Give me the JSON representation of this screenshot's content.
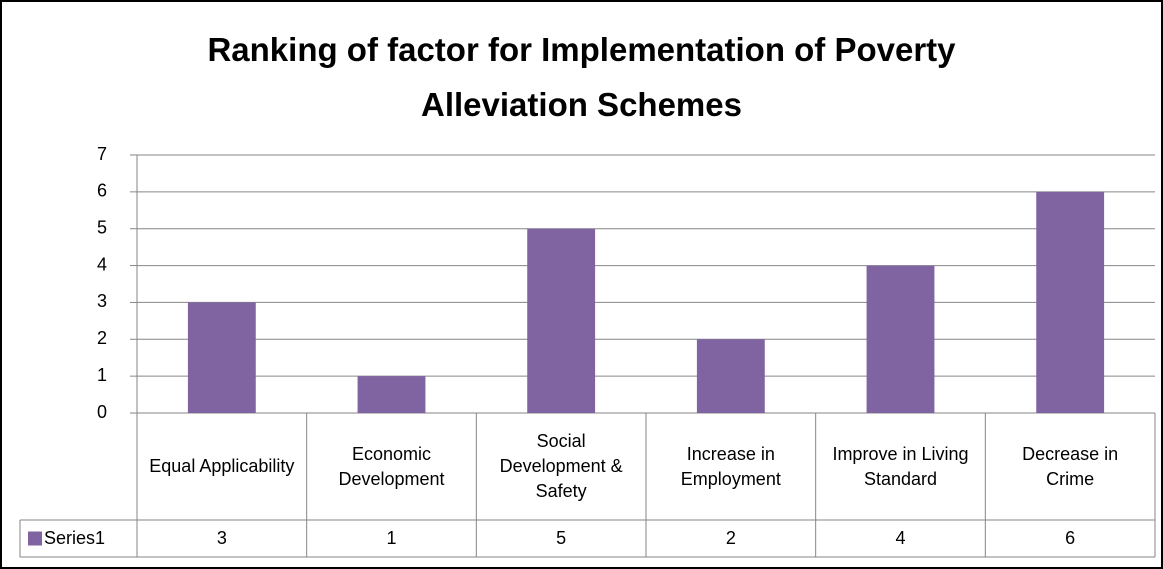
{
  "chart_data": {
    "type": "bar",
    "title": "Ranking of factor for Implementation of Poverty Alleviation Schemes",
    "categories": [
      "Equal Applicability",
      "Economic Development",
      "Social Development & Safety",
      "Increase in Employment",
      "Improve in Living Standard",
      "Decrease in Crime"
    ],
    "series": [
      {
        "name": "Series1",
        "color": "#8064a2",
        "values": [
          3,
          1,
          5,
          2,
          4,
          6
        ]
      }
    ],
    "ylim": [
      0,
      7
    ],
    "yticks": [
      0,
      1,
      2,
      3,
      4,
      5,
      6,
      7
    ],
    "grid": true
  }
}
